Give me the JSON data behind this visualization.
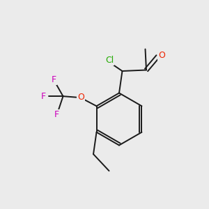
{
  "background_color": "#ebebeb",
  "bond_color": "#1a1a1a",
  "atom_colors": {
    "Cl": "#22aa00",
    "O": "#ee2200",
    "F": "#cc00bb",
    "C": "#1a1a1a"
  },
  "fs": 8.5
}
